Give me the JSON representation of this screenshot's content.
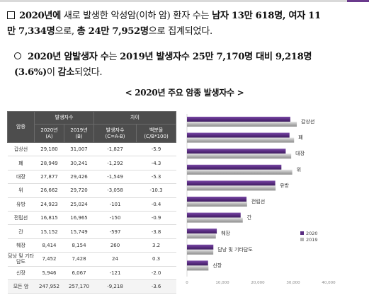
{
  "para1": {
    "marker": "□",
    "l1_a": "2020년에",
    "l1_b": "새로 발생한 악성암(이하 암) 환자 수",
    "l1_c": "는",
    "l1_d": "남자 13만 618명, 여자 11",
    "l2_a": "만 7,334명",
    "l2_b": "으로,",
    "l2_c": "총 24만 7,952명",
    "l2_d": "으로 집계되었다."
  },
  "para2": {
    "marker": "○",
    "l1_a": "2020년 암발생자 수",
    "l1_b": "는",
    "l1_c": "2019년 발생자수 25만 7,170명 대비 9,218명",
    "l2_a": "(3.6%)",
    "l2_b": "이",
    "l2_c": "감소",
    "l2_d": "되었다."
  },
  "caption": "< 2020년 주요 암종 발생자수 >",
  "table": {
    "h_cancer": "암종",
    "h_cases": "발생자수",
    "h_diff": "차이",
    "h_2020": "2020년",
    "h_2020_sub": "(A)",
    "h_2019": "2019년",
    "h_2019_sub": "(B)",
    "h_count": "발생자수",
    "h_count_sub": "(C=A-B)",
    "h_pct": "백분율",
    "h_pct_sub": "(C/B*100)",
    "rows": [
      {
        "name": "갑상선",
        "y2020": "29,180",
        "y2019": "31,007",
        "diff": "-1,827",
        "pct": "-5.9"
      },
      {
        "name": "폐",
        "y2020": "28,949",
        "y2019": "30,241",
        "diff": "-1,292",
        "pct": "-4.3"
      },
      {
        "name": "대장",
        "y2020": "27,877",
        "y2019": "29,426",
        "diff": "-1,549",
        "pct": "-5.3"
      },
      {
        "name": "위",
        "y2020": "26,662",
        "y2019": "29,720",
        "diff": "-3,058",
        "pct": "-10.3"
      },
      {
        "name": "유방",
        "y2020": "24,923",
        "y2019": "25,024",
        "diff": "-101",
        "pct": "-0.4"
      },
      {
        "name": "전립선",
        "y2020": "16,815",
        "y2019": "16,965",
        "diff": "-150",
        "pct": "-0.9"
      },
      {
        "name": "간",
        "y2020": "15,152",
        "y2019": "15,749",
        "diff": "-597",
        "pct": "-3.8"
      },
      {
        "name": "췌장",
        "y2020": "8,414",
        "y2019": "8,154",
        "diff": "260",
        "pct": "3.2"
      },
      {
        "name": "담낭 및 기타담도",
        "y2020": "7,452",
        "y2019": "7,428",
        "diff": "24",
        "pct": "0.3"
      },
      {
        "name": "신장",
        "y2020": "5,946",
        "y2019": "6,067",
        "diff": "-121",
        "pct": "-2.0"
      },
      {
        "name": "모든 암",
        "y2020": "247,952",
        "y2019": "257,170",
        "diff": "-9,218",
        "pct": "-3.6"
      }
    ]
  },
  "chart_data": {
    "type": "bar",
    "orientation": "horizontal",
    "categories": [
      "갑상선",
      "폐",
      "대장",
      "위",
      "유방",
      "전립선",
      "간",
      "췌장",
      "담낭 및 기타담도",
      "신장"
    ],
    "series": [
      {
        "name": "2020",
        "values": [
          29180,
          28949,
          27877,
          26662,
          24923,
          16815,
          15152,
          8414,
          7452,
          5946
        ],
        "color": "#5a2d82"
      },
      {
        "name": "2019",
        "values": [
          31007,
          30241,
          29426,
          29720,
          25024,
          16965,
          15749,
          8154,
          7428,
          6067
        ],
        "color": "#b4b4b4"
      }
    ],
    "xlim": [
      0,
      40000
    ],
    "xticks": [
      "0",
      "10,000",
      "20,000",
      "30,000",
      "40,000"
    ],
    "xtick_values": [
      0,
      10000,
      20000,
      30000,
      40000
    ],
    "legend_position": "bottom-right",
    "grid": false
  }
}
